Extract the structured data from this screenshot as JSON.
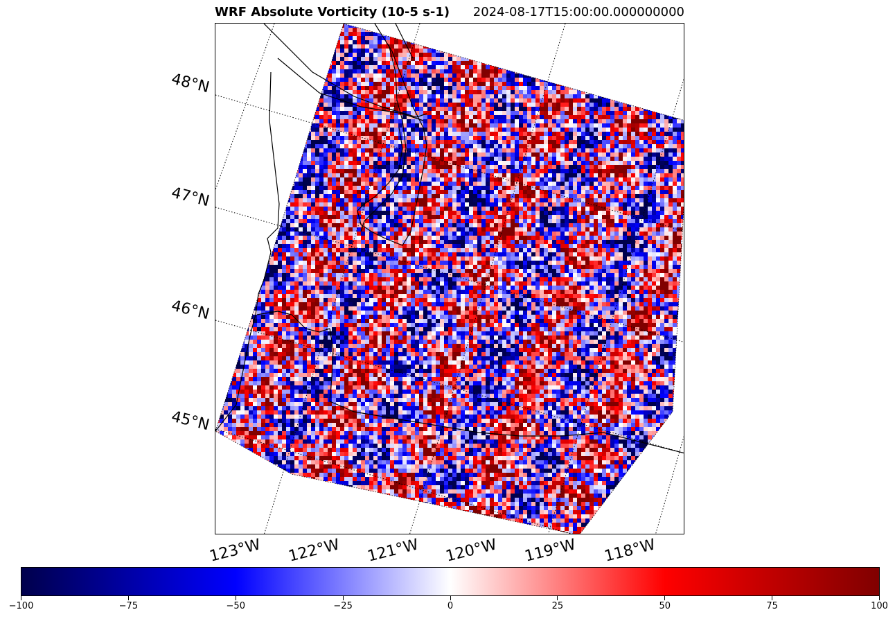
{
  "title": {
    "left": "WRF Absolute Vorticity (10-5 s-1)",
    "right": "2024-08-17T15:00:00.000000000"
  },
  "map": {
    "latitude_labels": [
      "48°N",
      "47°N",
      "46°N",
      "45°N"
    ],
    "longitude_labels": [
      "123°W",
      "122°W",
      "121°W",
      "120°W",
      "119°W",
      "118°W"
    ],
    "gridlines": "dotted",
    "features": [
      "coastline",
      "state-borders"
    ],
    "field": "absolute-vorticity"
  },
  "colorbar": {
    "min": -100,
    "max": 100,
    "colormap": "seismic",
    "colors": [
      "#00004c",
      "#0000ff",
      "#ffffff",
      "#ff0000",
      "#800000"
    ],
    "ticks": [
      "−100",
      "−75",
      "−50",
      "−25",
      "0",
      "25",
      "50",
      "75",
      "100"
    ]
  }
}
